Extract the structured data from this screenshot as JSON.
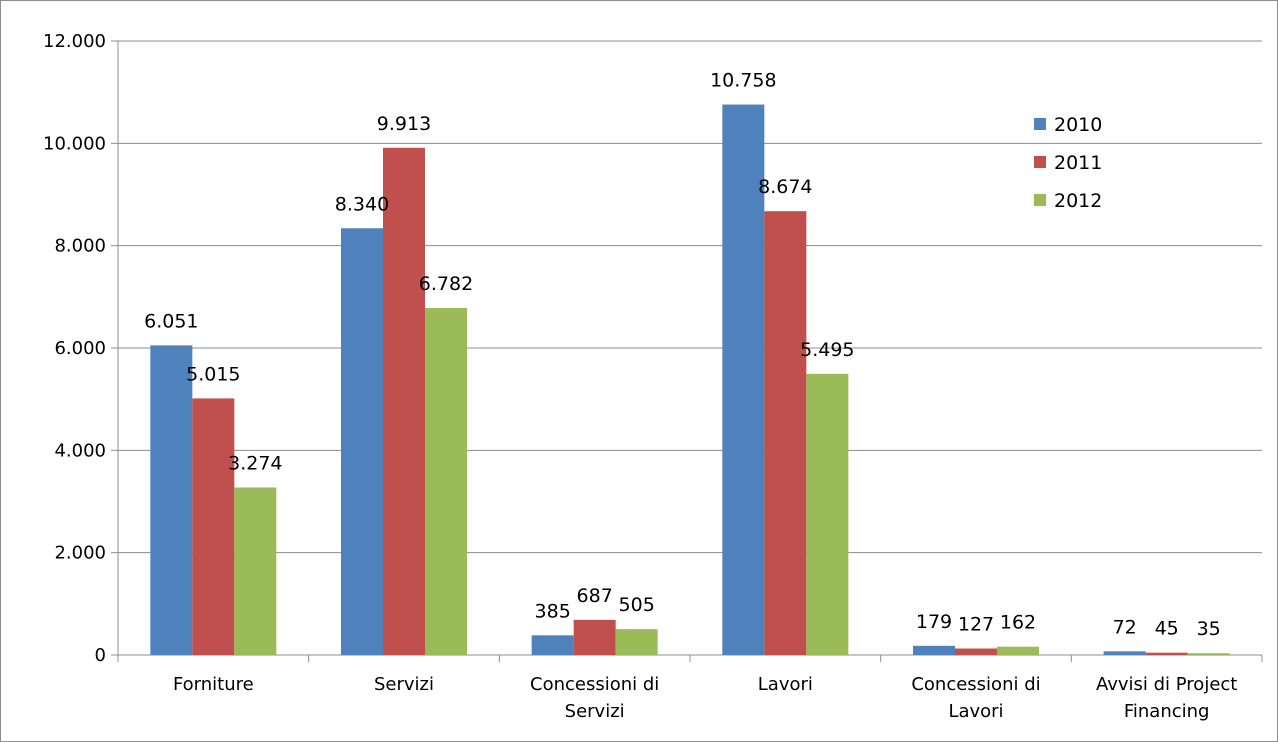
{
  "chart_data": {
    "type": "bar",
    "categories": [
      [
        "Forniture"
      ],
      [
        "Servizi"
      ],
      [
        "Concessioni di",
        "Servizi"
      ],
      [
        "Lavori"
      ],
      [
        "Concessioni di",
        "Lavori"
      ],
      [
        "Avvisi di Project",
        "Financing"
      ]
    ],
    "series": [
      {
        "name": "2010",
        "color": "#4f81bd",
        "values": [
          6051,
          8340,
          385,
          10758,
          179,
          72
        ],
        "labels": [
          "6.051",
          "8.340",
          "385",
          "10.758",
          "179",
          "72"
        ]
      },
      {
        "name": "2011",
        "color": "#c0504d",
        "values": [
          5015,
          9913,
          687,
          8674,
          127,
          45
        ],
        "labels": [
          "5.015",
          "9.913",
          "687",
          "8.674",
          "127",
          "45"
        ]
      },
      {
        "name": "2012",
        "color": "#9bbb59",
        "values": [
          3274,
          6782,
          505,
          5495,
          162,
          35
        ],
        "labels": [
          "3.274",
          "6.782",
          "505",
          "5.495",
          "162",
          "35"
        ]
      }
    ],
    "ylim": [
      0,
      12000
    ],
    "yticks": [
      {
        "value": 0,
        "label": "0"
      },
      {
        "value": 2000,
        "label": "2.000"
      },
      {
        "value": 4000,
        "label": "4.000"
      },
      {
        "value": 6000,
        "label": "6.000"
      },
      {
        "value": 8000,
        "label": "8.000"
      },
      {
        "value": 10000,
        "label": "10.000"
      },
      {
        "value": 12000,
        "label": "12.000"
      }
    ],
    "grid": true,
    "legend_position": "top-right",
    "title": "",
    "xlabel": "",
    "ylabel": ""
  }
}
